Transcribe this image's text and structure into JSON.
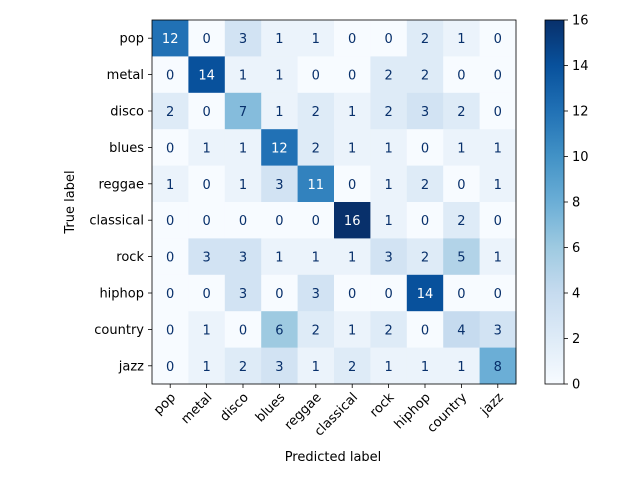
{
  "chart_data": {
    "type": "heatmap",
    "title": "",
    "xlabel": "Predicted label",
    "ylabel": "True label",
    "x_categories": [
      "pop",
      "metal",
      "disco",
      "blues",
      "reggae",
      "classical",
      "rock",
      "hiphop",
      "country",
      "jazz"
    ],
    "y_categories": [
      "pop",
      "metal",
      "disco",
      "blues",
      "reggae",
      "classical",
      "rock",
      "hiphop",
      "country",
      "jazz"
    ],
    "values": [
      [
        12,
        0,
        3,
        1,
        1,
        0,
        0,
        2,
        1,
        0
      ],
      [
        0,
        14,
        1,
        1,
        0,
        0,
        2,
        2,
        0,
        0
      ],
      [
        2,
        0,
        7,
        1,
        2,
        1,
        2,
        3,
        2,
        0
      ],
      [
        0,
        1,
        1,
        12,
        2,
        1,
        1,
        0,
        1,
        1
      ],
      [
        1,
        0,
        1,
        3,
        11,
        0,
        1,
        2,
        0,
        1
      ],
      [
        0,
        0,
        0,
        0,
        0,
        16,
        1,
        0,
        2,
        0
      ],
      [
        0,
        3,
        3,
        1,
        1,
        1,
        3,
        2,
        5,
        1
      ],
      [
        0,
        0,
        3,
        0,
        3,
        0,
        0,
        14,
        0,
        0
      ],
      [
        0,
        1,
        0,
        6,
        2,
        1,
        2,
        0,
        4,
        3
      ],
      [
        0,
        1,
        2,
        3,
        1,
        2,
        1,
        1,
        1,
        8
      ]
    ],
    "colorbar": {
      "min": 0,
      "max": 16,
      "ticks": [
        0,
        2,
        4,
        6,
        8,
        10,
        12,
        14,
        16
      ]
    },
    "colormap": "Blues",
    "colors": {
      "low": "#f7fbff",
      "high": "#08306b",
      "text_dark": "#08306b",
      "text_light": "#ffffff"
    }
  }
}
